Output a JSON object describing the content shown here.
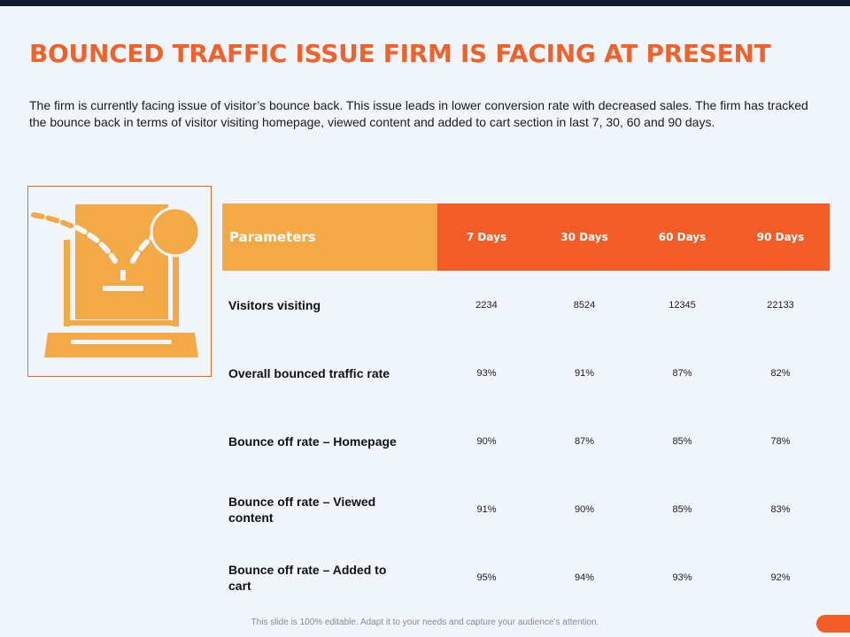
{
  "slide": {
    "title": "BOUNCED TRAFFIC ISSUE FIRM IS FACING AT PRESENT",
    "description": "The firm is currently facing issue of visitor’s bounce back. This issue leads in lower conversion rate with decreased sales. The firm has tracked the bounce back in terms of visitor visiting homepage, viewed content and added to cart section in last 7, 30, 60 and 90 days.",
    "footer": "This slide is 100% editable. Adapt it to your needs and capture your audience’s attention."
  },
  "illustration": {
    "icon": "laptop-bounce-icon"
  },
  "table": {
    "headers": [
      "Parameters",
      "7 Days",
      "30 Days",
      "60 Days",
      "90 Days"
    ],
    "rows": [
      {
        "label": "Visitors visiting",
        "values": [
          "2234",
          "8524",
          "12345",
          "22133"
        ]
      },
      {
        "label": "Overall bounced traffic rate",
        "values": [
          "93%",
          "91%",
          "87%",
          "82%"
        ]
      },
      {
        "label": "Bounce off rate – Homepage",
        "values": [
          "90%",
          "87%",
          "85%",
          "78%"
        ]
      },
      {
        "label": "Bounce off rate – Viewed content",
        "values": [
          "91%",
          "90%",
          "85%",
          "83%"
        ]
      },
      {
        "label": "Bounce off rate – Added to cart",
        "values": [
          "95%",
          "94%",
          "93%",
          "92%"
        ]
      }
    ]
  },
  "colors": {
    "accent": "#f0622a",
    "header_orange": "#f25c26",
    "header_light": "#f3a946",
    "background": "#f0f6fc",
    "topbar": "#0f1b2d"
  }
}
